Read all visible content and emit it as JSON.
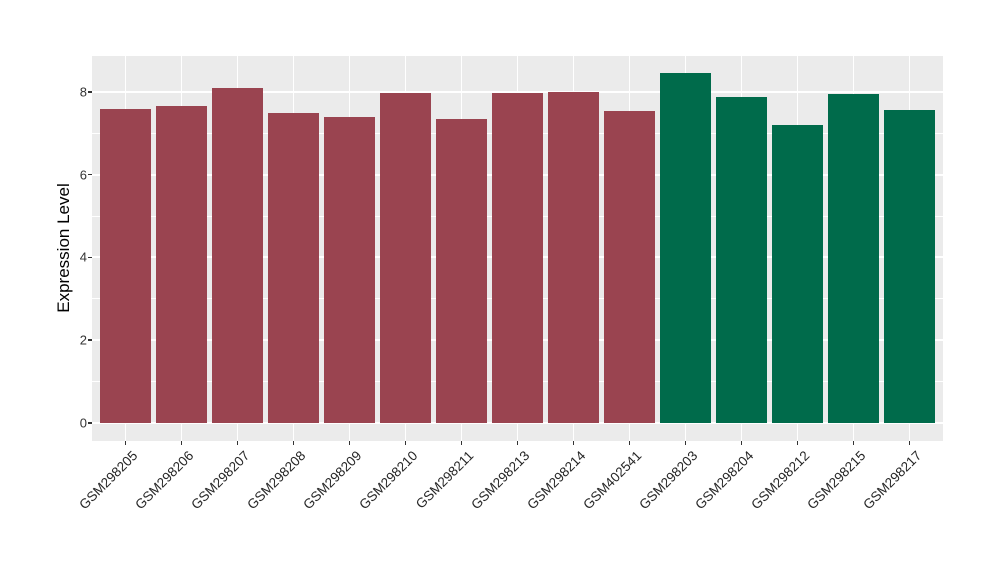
{
  "chart_data": {
    "type": "bar",
    "title": "",
    "xlabel": "",
    "ylabel": "Expression Level",
    "categories": [
      "GSM298205",
      "GSM298206",
      "GSM298207",
      "GSM298208",
      "GSM298209",
      "GSM298210",
      "GSM298211",
      "GSM298213",
      "GSM298214",
      "GSM402541",
      "GSM298203",
      "GSM298204",
      "GSM298212",
      "GSM298215",
      "GSM298217"
    ],
    "values": [
      7.58,
      7.65,
      8.09,
      7.5,
      7.4,
      7.97,
      7.34,
      7.97,
      8.0,
      7.53,
      8.45,
      7.87,
      7.21,
      7.96,
      7.56
    ],
    "bar_colors": [
      "#9A4450",
      "#9A4450",
      "#9A4450",
      "#9A4450",
      "#9A4450",
      "#9A4450",
      "#9A4450",
      "#9A4450",
      "#9A4450",
      "#9A4450",
      "#006B4B",
      "#006B4B",
      "#006B4B",
      "#006B4B",
      "#006B4B"
    ],
    "group_palette": {
      "maroon_group": "#9A4450",
      "green_group": "#006B4B"
    },
    "yticks": [
      0,
      2,
      4,
      6,
      8
    ],
    "minor_yticks": [
      1,
      3,
      5,
      7
    ],
    "ylim": [
      -0.44,
      8.87
    ],
    "grid": "on",
    "legend_position": "none",
    "panel_background": "#EBEBEB",
    "gridline_color": "#FFFFFF",
    "axis_text_color": "#333333",
    "bar_width_fraction": 0.9
  }
}
